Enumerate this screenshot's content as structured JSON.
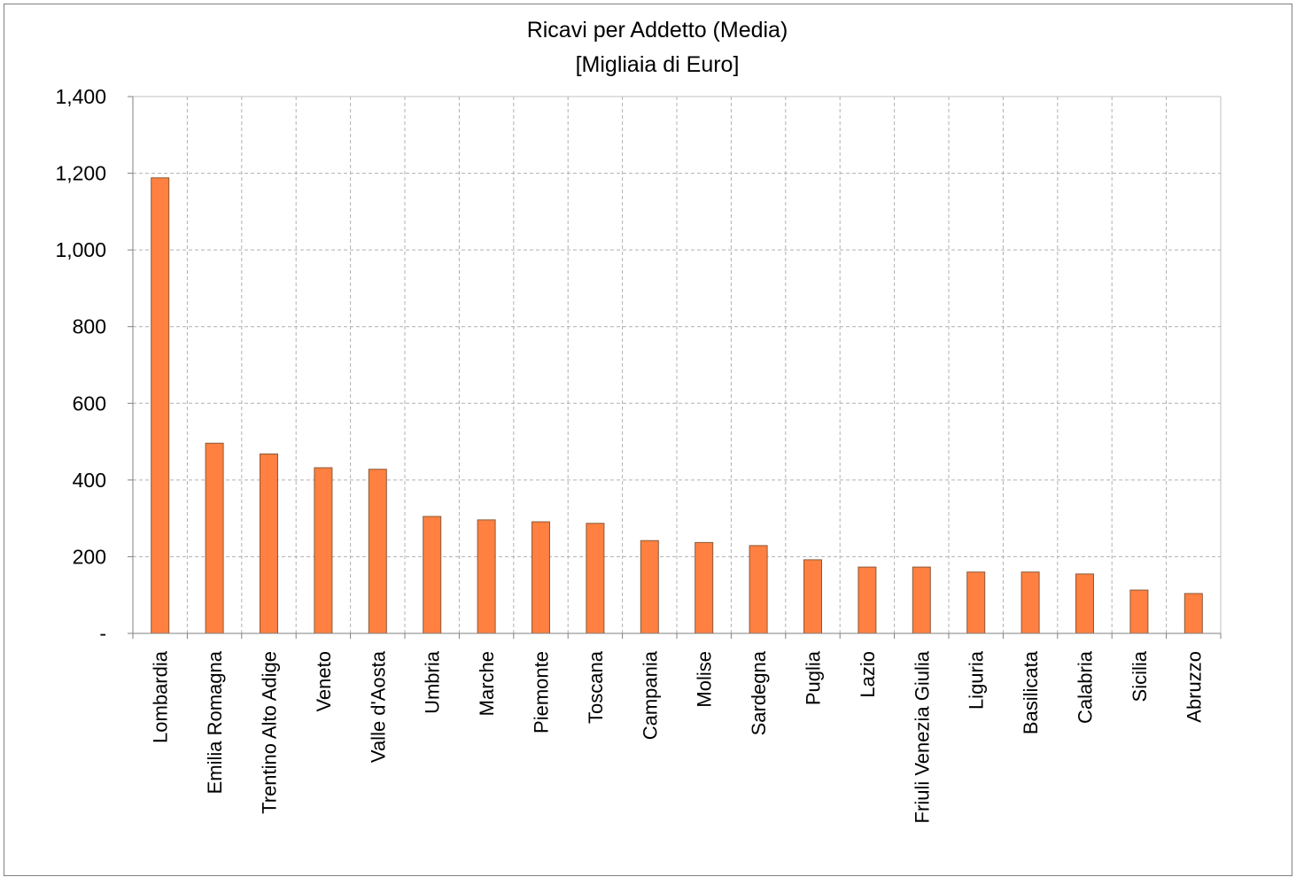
{
  "chart_data": {
    "type": "bar",
    "title": "Ricavi per Addetto (Media)",
    "subtitle": "[Migliaia di Euro]",
    "xlabel": "",
    "ylabel": "",
    "ylim": [
      0,
      1400
    ],
    "yticks": [
      0,
      200,
      400,
      600,
      800,
      1000,
      1200,
      1400
    ],
    "ytick_labels": [
      "-",
      "200",
      "400",
      "600",
      "800",
      "1,000",
      "1,200",
      "1,400"
    ],
    "grid": true,
    "legend": "none",
    "bar_color": "#FF8040",
    "categories": [
      "Lombardia",
      "Emilia Romagna",
      "Trentino Alto Adige",
      "Veneto",
      "Valle d'Aosta",
      "Umbria",
      "Marche",
      "Piemonte",
      "Toscana",
      "Campania",
      "Molise",
      "Sardegna",
      "Puglia",
      "Lazio",
      "Friuli Venezia Giulia",
      "Liguria",
      "Basilicata",
      "Calabria",
      "Sicilia",
      "Abruzzo"
    ],
    "values": [
      1188,
      496,
      468,
      432,
      428,
      305,
      296,
      291,
      287,
      242,
      237,
      229,
      192,
      173,
      173,
      160,
      160,
      155,
      113,
      104
    ]
  }
}
